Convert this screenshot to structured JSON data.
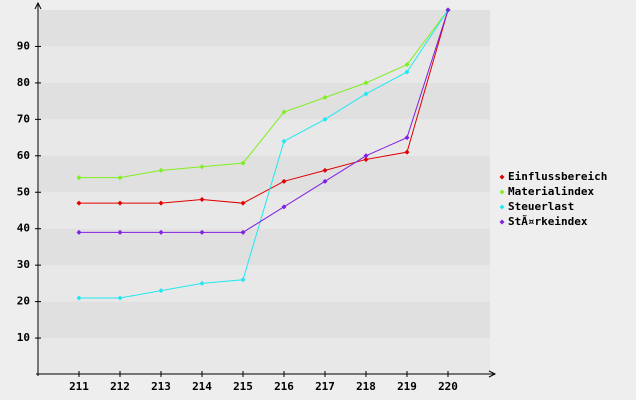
{
  "chart_data": {
    "type": "line",
    "categories": [
      "211",
      "212",
      "213",
      "214",
      "215",
      "216",
      "217",
      "218",
      "219",
      "220"
    ],
    "series": [
      {
        "name": "Einflussbereich",
        "color": "#e00000",
        "values": [
          47,
          47,
          47,
          48,
          47,
          53,
          56,
          59,
          61,
          100
        ]
      },
      {
        "name": "Materialindex",
        "color": "#80ee20",
        "values": [
          54,
          54,
          56,
          57,
          58,
          72,
          76,
          80,
          85,
          100
        ]
      },
      {
        "name": "Steuerlast",
        "color": "#20e8f0",
        "values": [
          21,
          21,
          23,
          25,
          26,
          64,
          70,
          77,
          83,
          100
        ]
      },
      {
        "name": "StÃ¤rkeindex",
        "color": "#8020e0",
        "values": [
          39,
          39,
          39,
          39,
          39,
          46,
          53,
          60,
          65,
          100
        ]
      }
    ],
    "ylim": [
      0,
      100
    ],
    "yticks": [
      10,
      20,
      30,
      40,
      50,
      60,
      70,
      80,
      90
    ],
    "grid": true,
    "legend": "right"
  }
}
